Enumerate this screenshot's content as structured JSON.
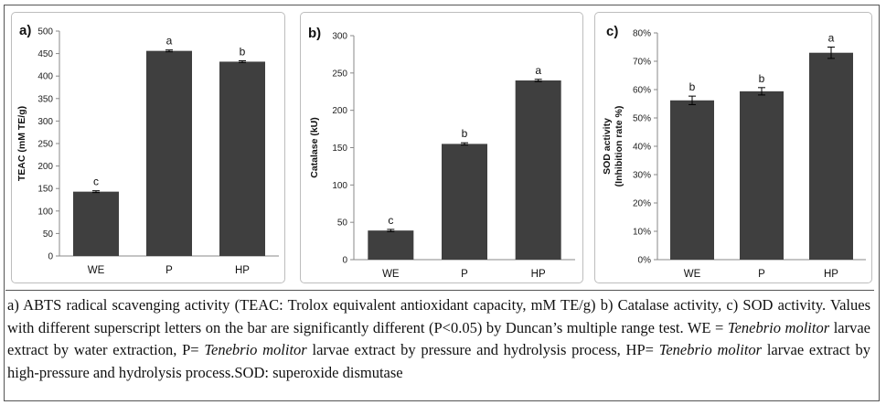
{
  "chart_data": [
    {
      "type": "bar",
      "panel_label": "a)",
      "ylabel": "TEAC (mM TE/g)",
      "categories": [
        "WE",
        "P",
        "HP"
      ],
      "values": [
        143,
        456,
        432
      ],
      "errors": [
        2,
        2,
        2
      ],
      "letters": [
        "c",
        "a",
        "b"
      ],
      "ylim": [
        0,
        500
      ],
      "yticks": [
        0,
        50,
        100,
        150,
        200,
        250,
        300,
        350,
        400,
        450,
        500
      ],
      "ytick_labels": [
        "0",
        "50",
        "100",
        "150",
        "200",
        "250",
        "300",
        "350",
        "400",
        "450",
        "500"
      ],
      "bar_color": "#3f3f3f"
    },
    {
      "type": "bar",
      "panel_label": "b)",
      "ylabel": "Catalase (kU)",
      "categories": [
        "WE",
        "P",
        "HP"
      ],
      "values": [
        39,
        155,
        240
      ],
      "errors": [
        1.5,
        1.5,
        1.5
      ],
      "letters": [
        "c",
        "b",
        "a"
      ],
      "ylim": [
        0,
        300
      ],
      "yticks": [
        0,
        50,
        100,
        150,
        200,
        250,
        300
      ],
      "ytick_labels": [
        "0",
        "50",
        "100",
        "150",
        "200",
        "250",
        "300"
      ],
      "bar_color": "#3f3f3f"
    },
    {
      "type": "bar",
      "panel_label": "c)",
      "ylabel": "SOD activity",
      "ylabel2": "(Inhibition rate %)",
      "categories": [
        "WE",
        "P",
        "HP"
      ],
      "values": [
        0.562,
        0.594,
        0.73
      ],
      "errors": [
        0.015,
        0.013,
        0.02
      ],
      "letters": [
        "b",
        "b",
        "a"
      ],
      "ylim": [
        0,
        0.8
      ],
      "yticks": [
        0,
        0.1,
        0.2,
        0.3,
        0.4,
        0.5,
        0.6,
        0.7,
        0.8
      ],
      "ytick_labels": [
        "0%",
        "10%",
        "20%",
        "30%",
        "40%",
        "50%",
        "60%",
        "70%",
        "80%"
      ],
      "bar_color": "#3f3f3f"
    }
  ],
  "caption": {
    "p1": "a) ABTS radical scavenging activity (TEAC: Trolox equivalent antioxidant capacity, mM TE/g) b) Catalase activity, c) SOD activity. Values with different superscript letters on the bar are significantly different (P<0.05) by Duncan’s multiple range test. WE = ",
    "species1": "Tenebrio molitor",
    "p2": " larvae extract by water extraction, P= ",
    "species2": "Tenebrio molitor",
    "p3": " larvae extract by pressure and hydrolysis process, HP= ",
    "species3": "Tenebrio molitor",
    "p4": " larvae extract by high-pressure and hydrolysis process.SOD: superoxide dismutase"
  }
}
